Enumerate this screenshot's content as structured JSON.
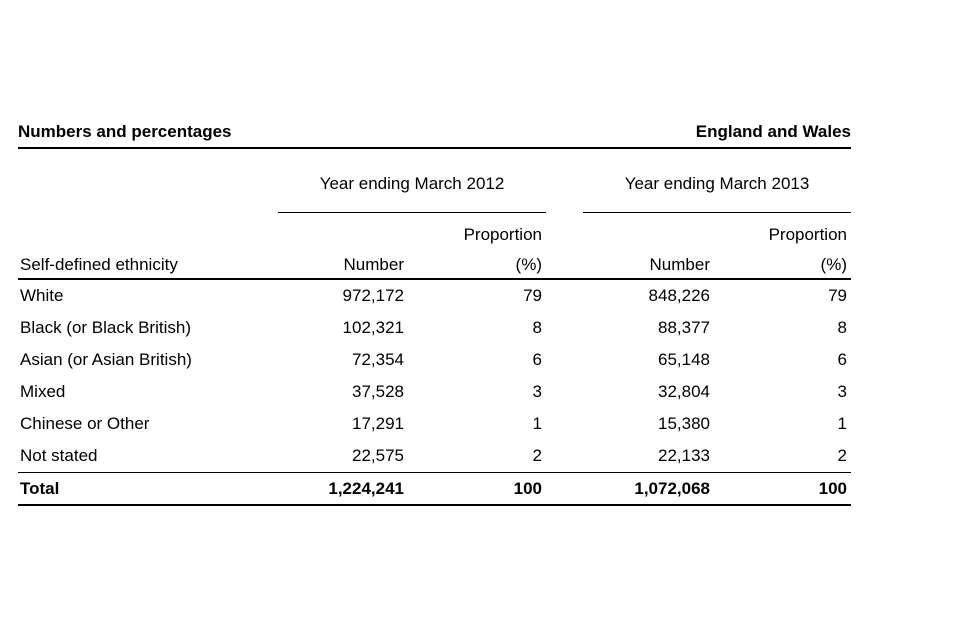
{
  "header": {
    "left_title": "Numbers and percentages",
    "right_title": "England and Wales"
  },
  "table": {
    "col_groups": [
      {
        "label": "Year ending March 2012"
      },
      {
        "label": "Year ending March 2013"
      }
    ],
    "sub_headers": {
      "row_label": "Self-defined ethnicity",
      "number_label": "Number",
      "proportion_label": "Proportion",
      "percent_label": "(%)"
    },
    "rows": [
      {
        "label": "White",
        "n2012": "972,172",
        "p2012": "79",
        "n2013": "848,226",
        "p2013": "79"
      },
      {
        "label": "Black (or Black British)",
        "n2012": "102,321",
        "p2012": "8",
        "n2013": "88,377",
        "p2013": "8"
      },
      {
        "label": "Asian (or Asian British)",
        "n2012": "72,354",
        "p2012": "6",
        "n2013": "65,148",
        "p2013": "6"
      },
      {
        "label": "Mixed",
        "n2012": "37,528",
        "p2012": "3",
        "n2013": "32,804",
        "p2013": "3"
      },
      {
        "label": "Chinese or Other",
        "n2012": "17,291",
        "p2012": "1",
        "n2013": "15,380",
        "p2013": "1"
      },
      {
        "label": "Not stated",
        "n2012": "22,575",
        "p2012": "2",
        "n2013": "22,133",
        "p2013": "2"
      }
    ],
    "total_row": {
      "label": "Total",
      "n2012": "1,224,241",
      "p2012": "100",
      "n2013": "1,072,068",
      "p2013": "100"
    }
  }
}
